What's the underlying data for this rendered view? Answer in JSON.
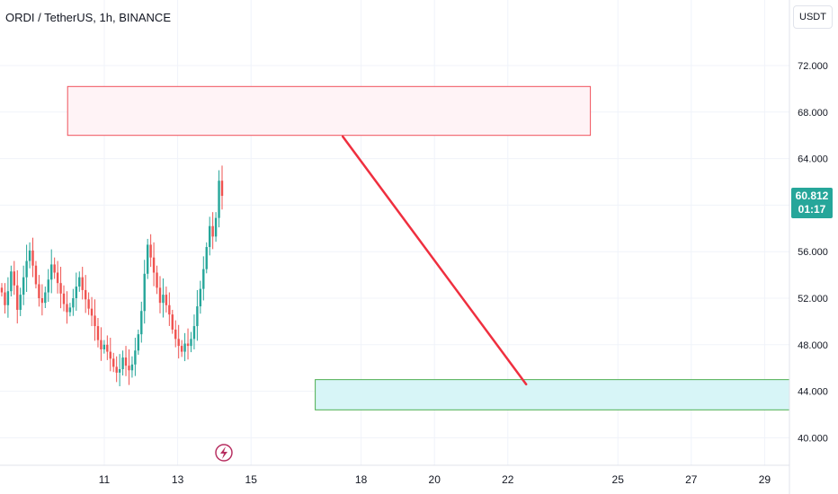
{
  "header": {
    "symbol_title": "ORDI / TetherUS, 1h, BINANCE"
  },
  "price_scale": {
    "currency": "USDT"
  },
  "last_price": {
    "value": "60.812",
    "countdown": "01:17",
    "color": "#26a69a"
  },
  "colors": {
    "up": "#26a69a",
    "down": "#ef5350",
    "resistance_fill": "#fff3f6",
    "resistance_border": "#f0505a",
    "support_fill": "#d7f5f7",
    "support_border": "#4caf50",
    "arrow": "#ef2f3f"
  },
  "chart_data": {
    "type": "candlestick",
    "yticks": [
      "40.000",
      "44.000",
      "48.000",
      "52.000",
      "56.000",
      "60.000",
      "64.000",
      "68.000",
      "72.000"
    ],
    "ylim": [
      38,
      75
    ],
    "xticks": [
      "11",
      "13",
      "15",
      "18",
      "20",
      "22",
      "25",
      "27",
      "29"
    ],
    "zones": [
      {
        "name": "resistance",
        "y_low": 66.0,
        "y_high": 70.2,
        "x_start": "Mar 10 00:00",
        "x_end": "Mar 24 06:00"
      },
      {
        "name": "support",
        "y_low": 42.4,
        "y_high": 45.0,
        "x_start": "Mar 16 18:00",
        "x_end": "Mar 30 18:00"
      }
    ],
    "projection": {
      "from": {
        "x": "Mar 17 12:00",
        "y": 65.9
      },
      "to": {
        "x": "Mar 22 12:00",
        "y": 44.6
      }
    },
    "close_series": [
      52.5,
      51.4,
      52.6,
      54.3,
      53.1,
      51.0,
      52.3,
      53.8,
      55.2,
      56.1,
      54.8,
      53.2,
      52.0,
      51.6,
      52.5,
      53.6,
      54.9,
      54.2,
      53.3,
      52.4,
      51.5,
      50.8,
      51.2,
      52.0,
      53.0,
      53.8,
      52.7,
      51.9,
      51.1,
      50.5,
      49.6,
      48.4,
      47.6,
      48.0,
      47.4,
      46.8,
      46.1,
      45.6,
      45.9,
      46.9,
      46.2,
      45.8,
      46.3,
      47.5,
      48.9,
      50.9,
      54.1,
      56.6,
      55.5,
      54.2,
      52.9,
      51.6,
      52.3,
      51.4,
      50.6,
      49.3,
      48.5,
      47.9,
      47.4,
      48.1,
      47.9,
      48.5,
      49.6,
      51.3,
      52.8,
      54.5,
      56.4,
      58.2,
      57.3,
      58.9,
      62.1,
      60.8
    ]
  }
}
